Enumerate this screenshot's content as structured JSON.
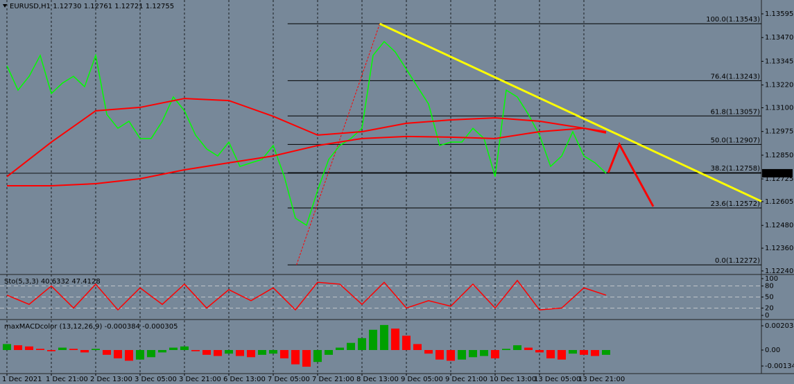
{
  "chart_data": [
    {
      "type": "line",
      "title": "EURUSD,H1  1.12730 1.12761 1.12721 1.12755",
      "categories": [
        "1 Dec 2021",
        null,
        null,
        null,
        "1 Dec 21:00",
        null,
        null,
        null,
        "2 Dec 13:00",
        null,
        null,
        null,
        "3 Dec 05:00",
        null,
        null,
        null,
        "3 Dec 21:00",
        null,
        null,
        null,
        "6 Dec 13:00",
        null,
        null,
        null,
        "7 Dec 05:00",
        null,
        null,
        null,
        "7 Dec 21:00",
        null,
        null,
        null,
        "8 Dec 13:00",
        null,
        null,
        null,
        "9 Dec 05:00",
        null,
        null,
        null,
        "9 Dec 21:00",
        null,
        null,
        null,
        "10 Dec 13:00",
        null,
        null,
        null,
        "13 Dec 05:00",
        null,
        null,
        null,
        "13 Dec 21:00",
        null,
        null
      ],
      "series": [
        {
          "color": "#00ff00",
          "values": [
            1.13321,
            1.13193,
            1.13266,
            1.13376,
            1.13175,
            1.1323,
            1.13266,
            1.13211,
            1.13376,
            1.13065,
            1.12992,
            1.13029,
            1.12938,
            1.12938,
            1.13029,
            1.13157,
            1.13084,
            1.12956,
            1.12883,
            1.12846,
            1.12919,
            1.12791,
            1.1281,
            1.12828,
            1.12901,
            1.12737,
            1.12518,
            1.12481,
            1.12664,
            1.12828,
            1.12901,
            1.12938,
            1.12992,
            1.13376,
            1.13449,
            1.13394,
            1.13303,
            1.13211,
            1.1312,
            1.12901,
            1.12919,
            1.12919,
            1.12992,
            1.12938,
            1.12737,
            1.13193,
            1.13157,
            1.13065,
            1.12956,
            1.12791,
            1.12846,
            1.12974,
            1.12846,
            1.1281,
            1.12755
          ]
        },
        {
          "color": "#ff0000",
          "x": [
            0,
            4,
            8,
            12,
            16,
            20,
            24,
            28,
            32,
            36,
            40,
            44,
            48,
            52,
            54
          ],
          "values": [
            1.12737,
            1.12919,
            1.13084,
            1.13102,
            1.13149,
            1.13138,
            1.13055,
            1.12956,
            1.12974,
            1.13018,
            1.13036,
            1.13047,
            1.13029,
            1.12992,
            1.12967
          ]
        },
        {
          "color": "#ff0000",
          "x": [
            0,
            4,
            8,
            12,
            16,
            20,
            24,
            28,
            32,
            36,
            40,
            44,
            48,
            52,
            54
          ],
          "values": [
            1.12689,
            1.12689,
            1.127,
            1.12726,
            1.12773,
            1.1281,
            1.12846,
            1.12901,
            1.12938,
            1.12949,
            1.12945,
            1.12938,
            1.12974,
            1.12992,
            1.12974
          ]
        }
      ],
      "ylim": [
        1.12225,
        1.13668
      ],
      "yticks": [
        1.13595,
        {
          "value": 1.1347,
          "label": "1.13470"
        },
        1.13345,
        {
          "value": 1.1322,
          "label": "1.13220"
        },
        {
          "value": 1.131,
          "label": "1.13100"
        },
        1.12975,
        {
          "value": 1.1285,
          "label": "1.12850"
        },
        1.12725,
        1.12605,
        {
          "value": 1.1248,
          "label": "1.12480"
        },
        {
          "value": 1.1236,
          "label": "1.12360"
        },
        {
          "value": 1.1224,
          "label": "1.12240"
        }
      ],
      "current_price": {
        "value": 1.12755,
        "label": "1.12755"
      },
      "fibonacci": {
        "color": "#000000",
        "x_start": 25.3,
        "levels": [
          {
            "value": 1.13543,
            "label": "100.0(1.13543)"
          },
          {
            "value": 1.13243,
            "label": "76.4(1.13243)"
          },
          {
            "value": 1.13057,
            "label": "61.8(1.13057)"
          },
          {
            "value": 1.12907,
            "label": "50.0(1.12907)"
          },
          {
            "value": 1.12758,
            "label": "38.2(1.12758)"
          },
          {
            "value": 1.12572,
            "label": "23.6(1.12572)"
          },
          {
            "value": 1.12272,
            "label": "0.0(1.12272)"
          }
        ],
        "anchor_color": "#ff0000",
        "anchor_x": [
          26.1,
          33.6
        ],
        "anchor_values": [
          1.12272,
          1.13543
        ]
      },
      "trendline": {
        "color": "#ffff00",
        "x": [
          33.6,
          68
        ],
        "values": [
          1.13543,
          1.12607
        ]
      },
      "projection": {
        "color": "#ff0000",
        "x": [
          54.2,
          55.2,
          58.25
        ],
        "values": [
          1.12758,
          1.12907,
          1.1258
        ]
      },
      "grid": true
    },
    {
      "type": "line",
      "title": "Sto(5,3,3) 40.6332 47.4128",
      "series": [
        {
          "color": "#ff0000",
          "x": [
            0,
            2,
            4,
            6,
            8,
            10,
            12,
            14,
            16,
            18,
            20,
            22,
            24,
            26,
            28,
            30,
            32,
            34,
            36,
            38,
            40,
            42,
            44,
            46,
            48,
            50,
            52,
            54
          ],
          "values": [
            55,
            30,
            80,
            20,
            85,
            15,
            75,
            30,
            85,
            20,
            70,
            40,
            75,
            15,
            90,
            85,
            30,
            90,
            20,
            40,
            25,
            85,
            20,
            95,
            15,
            20,
            75,
            55
          ]
        }
      ],
      "ylim": [
        -9.4,
        109.4
      ],
      "yticks": [
        100,
        80,
        50,
        20,
        0
      ],
      "levels": [
        80,
        50,
        20
      ]
    },
    {
      "type": "bar",
      "title": "maxMACDcolor (13,12,26,9) -0.000384 -0.000305",
      "values": [
        0.0005,
        0.0004,
        0.0003,
        0.0001,
        -0.0001,
        0.0002,
        0.0001,
        -0.0002,
        0.0001,
        -0.0004,
        -0.0007,
        -0.0009,
        -0.0008,
        -0.0006,
        -0.0002,
        0.0002,
        0.0003,
        -0.0001,
        -0.0004,
        -0.0005,
        -0.0003,
        -0.0005,
        -0.0006,
        -0.0004,
        -0.0003,
        -0.0007,
        -0.0012,
        -0.0014,
        -0.001,
        -0.0004,
        0.0002,
        0.0006,
        0.001,
        0.0017,
        0.0021,
        0.0018,
        0.0012,
        0.0005,
        -0.0003,
        -0.0008,
        -0.0009,
        -0.0008,
        -0.0006,
        -0.0005,
        -0.0007,
        0.0001,
        0.0004,
        0.0002,
        -0.0002,
        -0.0007,
        -0.0008,
        -0.0003,
        -0.0004,
        -0.0005,
        -0.0004
      ],
      "up_color": "#00a000",
      "down_color": "#ff0000",
      "ylim": [
        -0.00192,
        0.0025
      ],
      "yticks": [
        0.002034,
        {
          "value": 0,
          "label": "0.00"
        },
        -0.001341
      ]
    }
  ]
}
